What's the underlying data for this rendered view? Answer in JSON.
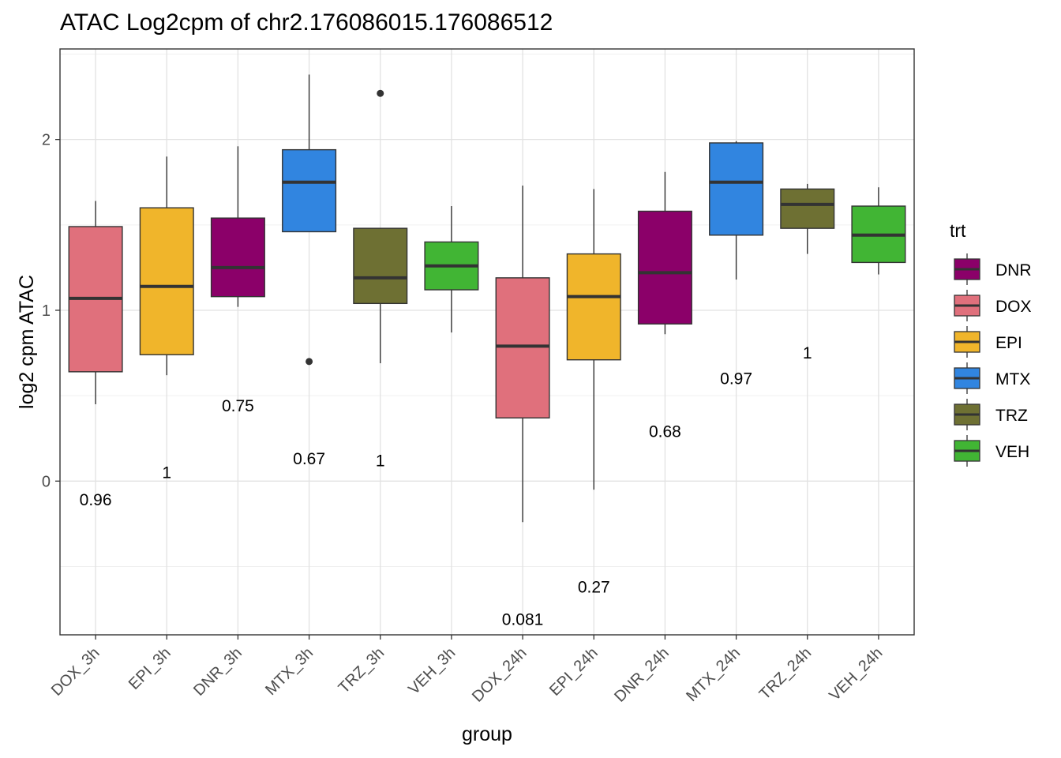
{
  "chart_data": {
    "type": "box",
    "title": "ATAC Log2cpm of chr2.176086015.176086512",
    "xlabel": "group",
    "ylabel": "log2 cpm ATAC",
    "ylim": [
      -0.9,
      2.53
    ],
    "yticks": [
      0,
      1,
      2
    ],
    "grid": true,
    "legend": {
      "title": "trt",
      "position": "right",
      "entries": [
        "DNR",
        "DOX",
        "EPI",
        "MTX",
        "TRZ",
        "VEH"
      ]
    },
    "colors": {
      "DNR": "#8B0069",
      "DOX": "#E0707C",
      "EPI": "#F0B52B",
      "MTX": "#3185E0",
      "TRZ": "#6E7033",
      "VEH": "#41B534"
    },
    "categories": [
      "DOX_3h",
      "EPI_3h",
      "DNR_3h",
      "MTX_3h",
      "TRZ_3h",
      "VEH_3h",
      "DOX_24h",
      "EPI_24h",
      "DNR_24h",
      "MTX_24h",
      "TRZ_24h",
      "VEH_24h"
    ],
    "boxes": [
      {
        "group": "DOX_3h",
        "trt": "DOX",
        "min": 0.45,
        "q1": 0.64,
        "median": 1.07,
        "q3": 1.49,
        "max": 1.64,
        "outliers": [],
        "label": "0.96",
        "label_y": -0.11
      },
      {
        "group": "EPI_3h",
        "trt": "EPI",
        "min": 0.62,
        "q1": 0.74,
        "median": 1.14,
        "q3": 1.6,
        "max": 1.9,
        "outliers": [],
        "label": "1",
        "label_y": 0.05
      },
      {
        "group": "DNR_3h",
        "trt": "DNR",
        "min": 1.02,
        "q1": 1.08,
        "median": 1.25,
        "q3": 1.54,
        "max": 1.96,
        "outliers": [],
        "label": "0.75",
        "label_y": 0.44
      },
      {
        "group": "MTX_3h",
        "trt": "MTX",
        "min": 1.46,
        "q1": 1.46,
        "median": 1.75,
        "q3": 1.94,
        "max": 2.38,
        "outliers": [
          0.7
        ],
        "label": "0.67",
        "label_y": 0.13
      },
      {
        "group": "TRZ_3h",
        "trt": "TRZ",
        "min": 0.69,
        "q1": 1.04,
        "median": 1.19,
        "q3": 1.48,
        "max": 1.48,
        "outliers": [
          2.27
        ],
        "label": "1",
        "label_y": 0.12
      },
      {
        "group": "VEH_3h",
        "trt": "VEH",
        "min": 0.87,
        "q1": 1.12,
        "median": 1.26,
        "q3": 1.4,
        "max": 1.61,
        "outliers": [],
        "label": "",
        "label_y": null
      },
      {
        "group": "DOX_24h",
        "trt": "DOX",
        "min": -0.24,
        "q1": 0.37,
        "median": 0.79,
        "q3": 1.19,
        "max": 1.73,
        "outliers": [],
        "label": "0.081",
        "label_y": -0.81
      },
      {
        "group": "EPI_24h",
        "trt": "EPI",
        "min": -0.05,
        "q1": 0.71,
        "median": 1.08,
        "q3": 1.33,
        "max": 1.71,
        "outliers": [],
        "label": "0.27",
        "label_y": -0.62
      },
      {
        "group": "DNR_24h",
        "trt": "DNR",
        "min": 0.86,
        "q1": 0.92,
        "median": 1.22,
        "q3": 1.58,
        "max": 1.81,
        "outliers": [],
        "label": "0.68",
        "label_y": 0.29
      },
      {
        "group": "MTX_24h",
        "trt": "MTX",
        "min": 1.18,
        "q1": 1.44,
        "median": 1.75,
        "q3": 1.98,
        "max": 1.99,
        "outliers": [],
        "label": "0.97",
        "label_y": 0.6
      },
      {
        "group": "TRZ_24h",
        "trt": "TRZ",
        "min": 1.33,
        "q1": 1.48,
        "median": 1.62,
        "q3": 1.71,
        "max": 1.74,
        "outliers": [],
        "label": "1",
        "label_y": 0.75
      },
      {
        "group": "VEH_24h",
        "trt": "VEH",
        "min": 1.21,
        "q1": 1.28,
        "median": 1.44,
        "q3": 1.61,
        "max": 1.72,
        "outliers": [],
        "label": "",
        "label_y": null
      }
    ]
  }
}
